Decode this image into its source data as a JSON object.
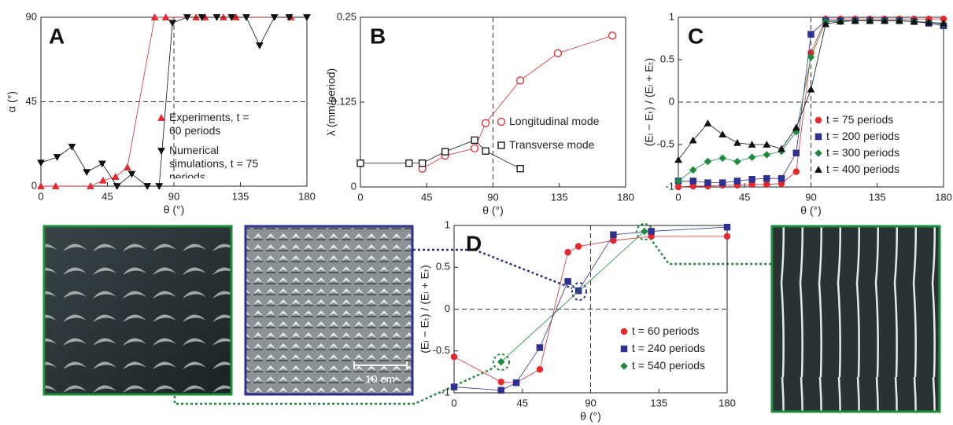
{
  "chart_data": [
    {
      "type": "scatter-line",
      "title": "A",
      "x_label": "θ (°)",
      "y_label": "α (°)",
      "xlim": [
        0,
        180
      ],
      "xticks": [
        0,
        45,
        90,
        135,
        180
      ],
      "ylim": [
        0,
        90
      ],
      "yticks": [
        0,
        45,
        90
      ],
      "hline": 45,
      "vline": 90,
      "grid": false,
      "series": [
        {
          "name": "Experiments, t = 60 periods",
          "color": "#e8262b",
          "marker": "triangle-up",
          "filled": true,
          "x": [
            0,
            10,
            33.5,
            42,
            50.5,
            58.5,
            77,
            84.5,
            105,
            111,
            123.5,
            132,
            169
          ],
          "values": [
            0,
            0,
            0,
            3,
            5,
            10,
            90,
            90,
            90,
            90,
            90,
            90,
            90
          ]
        },
        {
          "name": "Numerical simulations, t = 75 periods",
          "color": "#111111",
          "marker": "triangle-down",
          "filled": true,
          "x": [
            0,
            11,
            21,
            31,
            41.5,
            51.5,
            61.5,
            72,
            80,
            89,
            99,
            109,
            119,
            129,
            139,
            148,
            158,
            168,
            180
          ],
          "values": [
            12.5,
            15.5,
            21,
            7.5,
            12,
            0,
            6.5,
            0,
            0,
            87,
            90,
            90,
            90,
            90,
            90,
            75,
            90,
            90,
            90
          ]
        }
      ]
    },
    {
      "type": "scatter-line",
      "title": "B",
      "x_label": "θ (°)",
      "y_label": "λ̇ (mm/period)",
      "xlim": [
        0,
        180
      ],
      "xticks": [
        0,
        45,
        90,
        135,
        180
      ],
      "ylim": [
        0,
        0.25
      ],
      "yticks": [
        0,
        0.125,
        0.25
      ],
      "vline": 90,
      "grid": false,
      "series": [
        {
          "name": "Longitudinal mode",
          "color": "#e8262b",
          "marker": "circle",
          "filled": false,
          "x": [
            42,
            57.5,
            77.5,
            85,
            108.5,
            134,
            171
          ],
          "values": [
            0.027,
            0.046,
            0.057,
            0.094,
            0.157,
            0.197,
            0.223
          ]
        },
        {
          "name": "Transverse mode",
          "color": "#111111",
          "marker": "square",
          "filled": false,
          "x": [
            0,
            33,
            42,
            57.5,
            77.5,
            85,
            108.5
          ],
          "values": [
            0.035,
            0.035,
            0.035,
            0.052,
            0.069,
            0.053,
            0.027
          ]
        }
      ]
    },
    {
      "type": "scatter-line",
      "title": "C",
      "x_label": "θ (°)",
      "y_label": "(Eₗ − Eₜ) / (Eₗ + Eₜ)",
      "xlim": [
        0,
        180
      ],
      "xticks": [
        0,
        45,
        90,
        135,
        180
      ],
      "ylim": [
        -1,
        1
      ],
      "yticks": [
        1,
        0.5,
        0,
        -0.5,
        -1
      ],
      "hline": 0,
      "vline": 90,
      "grid": false,
      "series": [
        {
          "name": "t = 75 periods",
          "color": "#e8262b",
          "marker": "circle",
          "filled": true,
          "x": [
            0,
            10,
            20,
            30,
            40,
            50,
            60,
            70,
            80,
            90,
            100,
            110,
            120,
            130,
            140,
            150,
            160,
            170,
            180
          ],
          "values": [
            -1,
            -0.99,
            -0.99,
            -0.98,
            -0.98,
            -0.97,
            -0.97,
            -0.96,
            -0.82,
            0.58,
            0.98,
            0.98,
            0.98,
            0.98,
            0.98,
            0.98,
            0.98,
            0.98,
            0.98
          ]
        },
        {
          "name": "t = 200 periods",
          "color": "#2e3192",
          "marker": "square",
          "filled": true,
          "x": [
            0,
            10,
            20,
            30,
            40,
            50,
            60,
            70,
            80,
            90,
            100,
            110,
            120,
            130,
            140,
            150,
            160,
            170,
            180
          ],
          "values": [
            -0.93,
            -0.93,
            -0.95,
            -0.95,
            -0.93,
            -0.91,
            -0.9,
            -0.9,
            -0.6,
            0.8,
            0.96,
            0.96,
            0.96,
            0.96,
            0.96,
            0.96,
            0.95,
            0.93,
            0.9
          ]
        },
        {
          "name": "t = 300 periods",
          "color": "#1a8c3a",
          "marker": "diamond",
          "filled": true,
          "x": [
            0,
            10,
            20,
            30,
            40,
            50,
            60,
            70,
            80,
            90,
            100,
            110,
            120,
            130,
            140,
            150,
            160,
            170,
            180
          ],
          "values": [
            -0.93,
            -0.8,
            -0.7,
            -0.66,
            -0.7,
            -0.65,
            -0.62,
            -0.58,
            -0.35,
            0.53,
            0.95,
            0.95,
            0.96,
            0.96,
            0.96,
            0.96,
            0.95,
            0.94,
            0.92
          ]
        },
        {
          "name": "t = 400 periods",
          "color": "#111111",
          "marker": "triangle-up",
          "filled": true,
          "x": [
            0,
            10,
            20,
            30,
            40,
            50,
            60,
            70,
            80,
            90,
            100,
            110,
            120,
            130,
            140,
            150,
            160,
            170,
            180
          ],
          "values": [
            -0.68,
            -0.45,
            -0.25,
            -0.38,
            -0.48,
            -0.5,
            -0.5,
            -0.55,
            -0.3,
            0.15,
            0.92,
            0.95,
            0.96,
            0.96,
            0.96,
            0.96,
            0.95,
            0.94,
            0.93
          ]
        }
      ]
    },
    {
      "type": "scatter-line",
      "title": "D",
      "x_label": "θ (°)",
      "y_label": "(Eₗ − Eₜ) / (Eₗ + Eₜ)",
      "xlim": [
        0,
        180
      ],
      "xticks": [
        0,
        45,
        90,
        135,
        180
      ],
      "ylim": [
        -1,
        1
      ],
      "yticks": [
        1,
        0.5,
        0,
        -0.5,
        -1
      ],
      "hline": 0,
      "vline": 90,
      "grid": false,
      "series": [
        {
          "name": "t = 60 periods",
          "color": "#e8262b",
          "marker": "circle",
          "filled": true,
          "x": [
            0,
            31,
            41,
            56.5,
            75,
            82,
            105,
            130,
            180
          ],
          "values": [
            -0.57,
            -0.87,
            -0.88,
            -0.72,
            0.68,
            0.75,
            0.82,
            0.87,
            0.87
          ]
        },
        {
          "name": "t = 240 periods",
          "color": "#2e3192",
          "marker": "square",
          "filled": true,
          "x": [
            0,
            31,
            41,
            56.5,
            75,
            82,
            105,
            130,
            180
          ],
          "values": [
            -0.93,
            -0.97,
            -0.88,
            -0.46,
            0.33,
            0.22,
            0.89,
            0.93,
            0.98
          ]
        },
        {
          "name": "t = 540 periods",
          "color": "#1a8c3a",
          "marker": "diamond",
          "filled": true,
          "x": [
            31,
            125.5
          ],
          "values": [
            -0.63,
            0.93
          ]
        }
      ]
    }
  ],
  "scale_bar_label": "10 cm"
}
